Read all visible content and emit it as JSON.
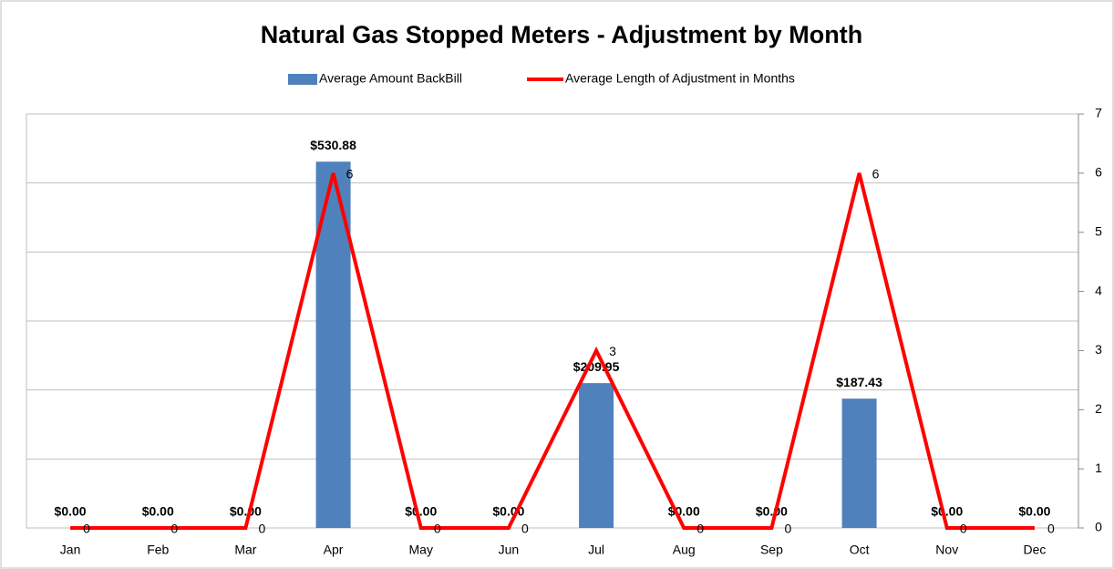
{
  "chart_data": {
    "type": "bar-line",
    "title": "Natural Gas Stopped Meters - Adjustment by Month",
    "categories": [
      "Jan",
      "Feb",
      "Mar",
      "Apr",
      "May",
      "Jun",
      "Jul",
      "Aug",
      "Sep",
      "Oct",
      "Nov",
      "Dec"
    ],
    "series": [
      {
        "name": "Average Amount BackBill",
        "type": "bar",
        "color": "#4f81bd",
        "values": [
          0,
          0,
          0,
          530.88,
          0,
          0,
          209.95,
          0,
          0,
          187.43,
          0,
          0
        ],
        "value_labels": [
          "$0.00",
          "$0.00",
          "$0.00",
          "$530.88",
          "$0.00",
          "$0.00",
          "$209.95",
          "$0.00",
          "$0.00",
          "$187.43",
          "$0.00",
          "$0.00"
        ]
      },
      {
        "name": "Average Length of Adjustment in Months",
        "type": "line",
        "color": "#ff0000",
        "axis": "y2",
        "values": [
          0,
          0,
          0,
          6,
          0,
          0,
          3,
          0,
          0,
          6,
          0,
          0
        ]
      }
    ],
    "ylim": [
      0,
      600
    ],
    "yticks": [
      0,
      100,
      200,
      300,
      400,
      500,
      600
    ],
    "y2lim": [
      0,
      7
    ],
    "y2ticks": [
      0,
      1,
      2,
      3,
      4,
      5,
      6,
      7
    ],
    "grid": true,
    "legend": "top"
  }
}
